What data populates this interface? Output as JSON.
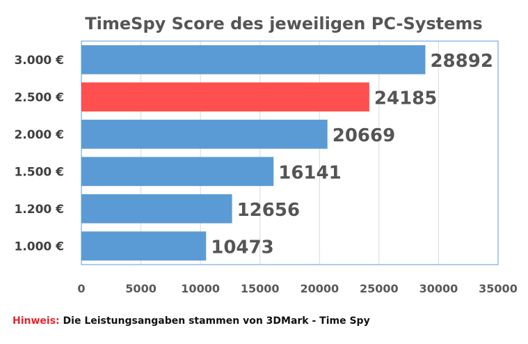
{
  "chart_data": {
    "type": "bar",
    "orientation": "horizontal",
    "title": "TimeSpy Score des jeweiligen PC-Systems",
    "categories": [
      "3.000 €",
      "2.500 €",
      "2.000 €",
      "1.500 €",
      "1.200 €",
      "1.000 €"
    ],
    "values": [
      28892,
      24185,
      20669,
      16141,
      12656,
      10473
    ],
    "data_labels": [
      "28892",
      "24185",
      "20669",
      "16141",
      "12656",
      "10473"
    ],
    "colors": [
      "#5b9bd5",
      "#ff4f4f",
      "#5b9bd5",
      "#5b9bd5",
      "#5b9bd5",
      "#5b9bd5"
    ],
    "xlim": [
      0,
      35000
    ],
    "xticks": [
      "0",
      "5000",
      "10000",
      "15000",
      "20000",
      "25000",
      "30000",
      "35000"
    ],
    "grid": true,
    "legend": "none",
    "xlabel": "",
    "ylabel": ""
  },
  "note": {
    "key": "Hinweis:",
    "text": " Die Leistungsangaben stammen von 3DMark - Time Spy",
    "key_color": "#e8232b"
  }
}
